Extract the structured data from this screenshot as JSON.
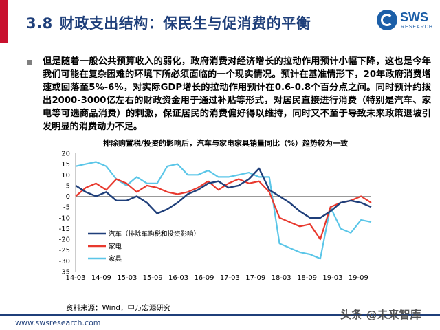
{
  "header": {
    "section": "3.8",
    "title": "财政支出结构：保民生与促消费的平衡",
    "logo_text": "SWS",
    "logo_sub": "RESEARCH"
  },
  "body": {
    "paragraph": "但是随着一般公共预算收入的弱化，政府消费对经济增长的拉动作用预计小幅下降，这也是今年我们可能在复杂困难的环境下所必须面临的一个现实情况。预计在基准情形下，20年政府消费增速或回落至5%-6%，对实际GDP增长的拉动作用预计在0.6-0.8个百分点之间。同时预计约拨出2000-3000亿左右的财政资金用于通过补贴等形式，对居民直接进行消费（特别是汽车、家电等可选商品消费）的刺激，保证居民的消费偏好得以维持，同时又不至于导致未来政策退坡引发明显的消费动力不足。"
  },
  "chart_data": {
    "type": "line",
    "title": "排除购置税/投资的影响后，汽车与家电家具销量同比（%）趋势较为一致",
    "xlabel": "",
    "ylabel": "",
    "ylim": [
      -35,
      20
    ],
    "yticks": [
      20,
      15,
      10,
      5,
      0,
      -5,
      -10,
      -15,
      -20,
      -25,
      -30,
      -35
    ],
    "xticks": [
      "14-03",
      "14-09",
      "15-03",
      "15-09",
      "16-03",
      "16-09",
      "17-03",
      "17-09",
      "18-03",
      "18-09",
      "19-03",
      "19-09"
    ],
    "grid": false,
    "legend_position": "center-right",
    "colors": {
      "auto": "#1f3f7a",
      "appliance": "#e8392e",
      "furniture": "#5bc6e8"
    },
    "series": [
      {
        "name": "汽车（排除车购税和投资影响）",
        "key": "auto",
        "values": [
          5,
          2,
          0,
          2,
          -2,
          -2,
          0,
          -3,
          -8,
          -6,
          -3,
          1,
          3,
          6,
          7,
          4,
          5,
          8,
          13,
          3,
          0,
          -3,
          -7,
          -10,
          -10,
          -7,
          -3,
          -2,
          -3,
          -5
        ]
      },
      {
        "name": "家电",
        "key": "appliance",
        "values": [
          0,
          4,
          6,
          3,
          8,
          6,
          2,
          5,
          4,
          2,
          1,
          2,
          4,
          7,
          3,
          6,
          8,
          6,
          7,
          2,
          -10,
          -12,
          -14,
          -13,
          -20,
          -5,
          -3,
          -2,
          0,
          -3
        ]
      },
      {
        "name": "家具",
        "key": "furniture",
        "values": [
          14,
          15,
          16,
          14,
          8,
          5,
          9,
          6,
          6,
          14,
          15,
          10,
          10,
          12,
          9,
          9,
          10,
          11,
          9,
          9,
          -22,
          -24,
          -26,
          -27,
          -29,
          -5,
          -15,
          -17,
          -11,
          -12
        ]
      }
    ]
  },
  "footer": {
    "source": "资料来源：Wind，申万宏源研究",
    "website": "www.swsresearch.com",
    "watermark": "头条 @未来智库"
  }
}
